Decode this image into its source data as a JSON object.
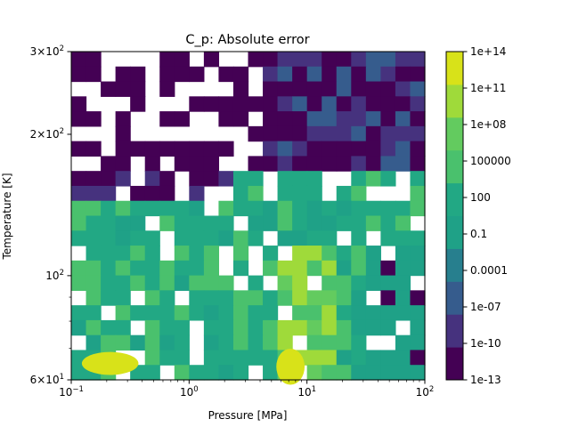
{
  "chart_data": {
    "type": "heatmap",
    "title": "C_p: Absolute error",
    "xlabel": "Pressure [MPa]",
    "ylabel": "Temperature [K]",
    "x_scale": "log",
    "y_scale": "log",
    "xlim": [
      0.1,
      100
    ],
    "ylim": [
      60,
      300
    ],
    "x_ticks": [
      {
        "value": 0.1,
        "base": "10",
        "exp": "−1"
      },
      {
        "value": 1,
        "base": "10",
        "exp": "0"
      },
      {
        "value": 10,
        "base": "10",
        "exp": "1"
      },
      {
        "value": 100,
        "base": "10",
        "exp": "2"
      }
    ],
    "y_ticks": [
      {
        "value": 60,
        "mant": "6",
        "exp": "1"
      },
      {
        "value": 100,
        "mant": "",
        "exp": "2"
      },
      {
        "value": 200,
        "mant": "2",
        "exp": "2"
      },
      {
        "value": 300,
        "mant": "3",
        "exp": "2"
      }
    ],
    "colorbar": {
      "scale": "log",
      "ticks": [
        "1e-13",
        "1e-10",
        "1e-07",
        "0.0001",
        "0.1",
        "100",
        "100000",
        "1e+08",
        "1e+11",
        "1e+14"
      ],
      "levels": [
        "1e-13",
        "1e-11.5",
        "1e-10",
        "1e-8.5",
        "1e-07",
        "1e-5.5",
        "0.0001",
        "1e-2.5",
        "0.1",
        "1e0.5",
        "100",
        "1e3.5",
        "100000",
        "1e6.5",
        "1e+08",
        "1e9.5",
        "1e+11",
        "1e12.5",
        "1e+14"
      ]
    },
    "colormap": [
      "#440154",
      "#46327e",
      "#365c8d",
      "#277f8e",
      "#1fa187",
      "#22a884",
      "#4ac16d",
      "#63cb5f",
      "#9fda3a",
      "#d8e219"
    ],
    "grid": false,
    "regions_note_exclude": true
  }
}
